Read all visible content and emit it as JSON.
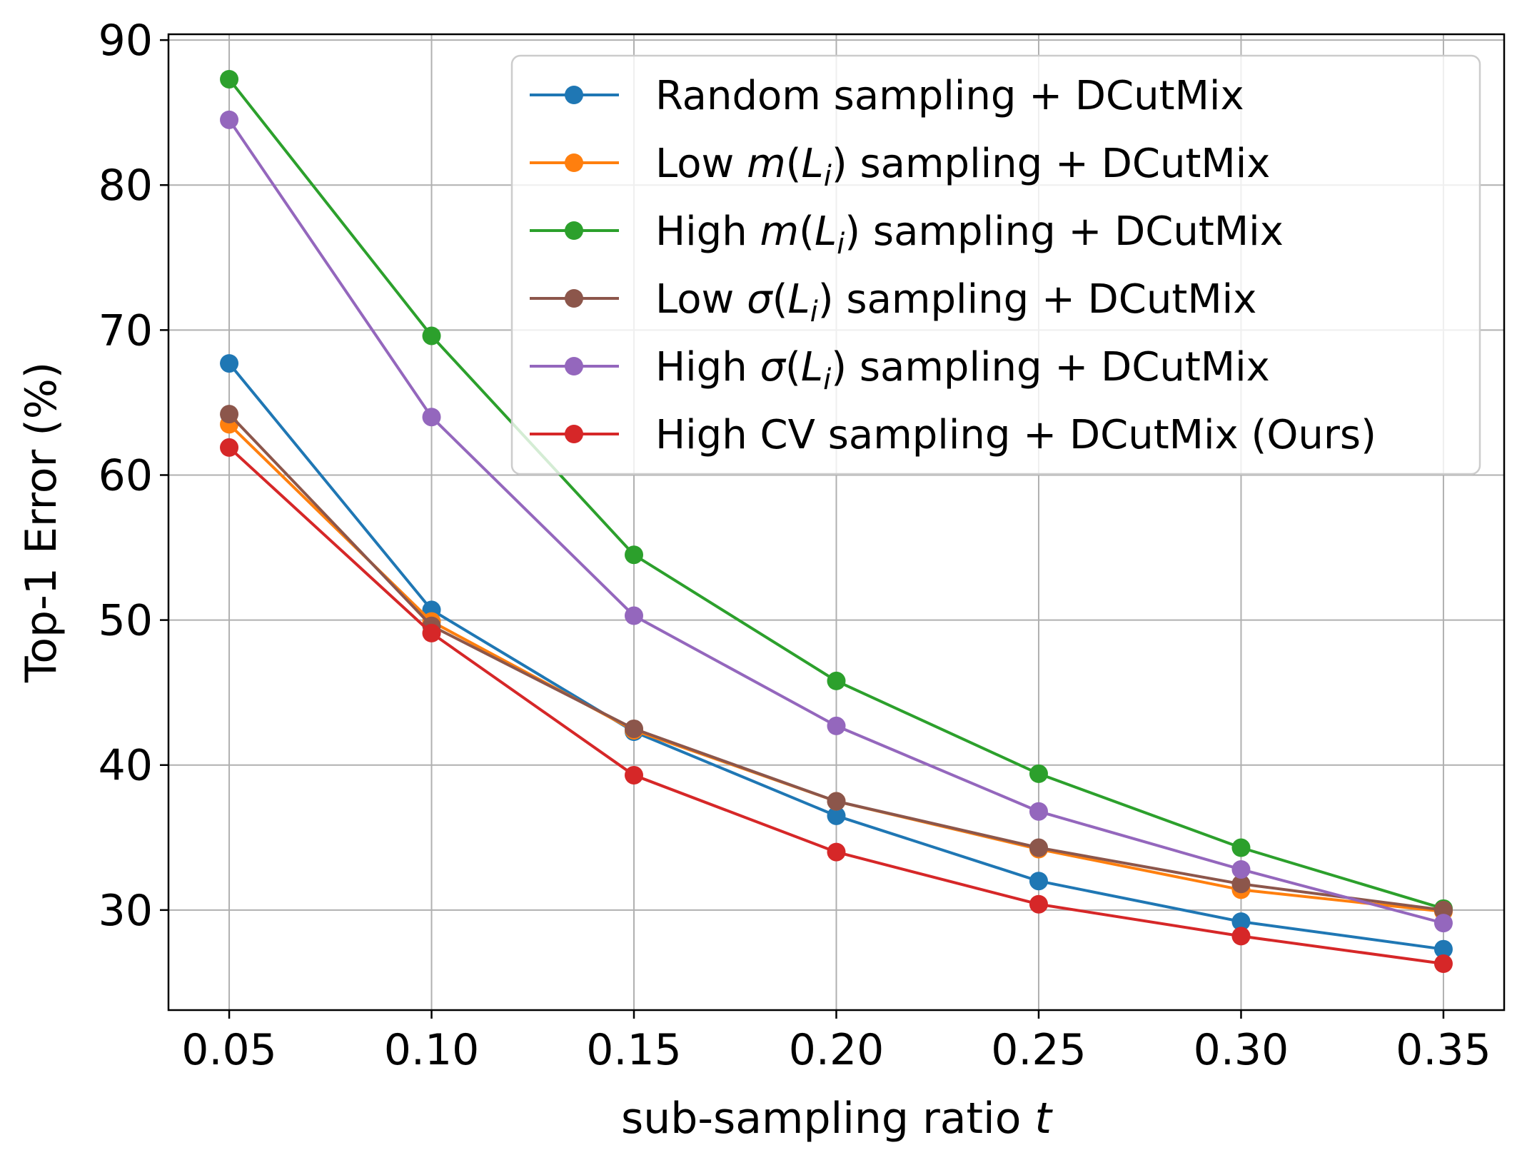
{
  "chart_data": {
    "type": "line",
    "xlabel": "sub-sampling ratio",
    "xlabel_var": "t",
    "ylabel": "Top-1 Error (%)",
    "x": [
      0.05,
      0.1,
      0.15,
      0.2,
      0.25,
      0.3,
      0.35
    ],
    "x_tick_labels": [
      "0.05",
      "0.10",
      "0.15",
      "0.20",
      "0.25",
      "0.30",
      "0.35"
    ],
    "xlim": [
      0.035,
      0.365
    ],
    "ylim": [
      23.1,
      90.4
    ],
    "y_ticks": [
      30,
      40,
      50,
      60,
      70,
      80,
      90
    ],
    "y_tick_labels": [
      "30",
      "40",
      "50",
      "60",
      "70",
      "80",
      "90"
    ],
    "grid": true,
    "legend_position": "top-right",
    "series": [
      {
        "name": "Random sampling + DCutMix",
        "legend": [
          {
            "t": "Random sampling + DCutMix"
          }
        ],
        "color": "#1f77b4",
        "values": [
          67.7,
          50.7,
          42.3,
          36.5,
          32.0,
          29.2,
          27.3
        ]
      },
      {
        "name": "Low m(L_i) sampling + DCutMix",
        "legend": [
          {
            "t": "Low "
          },
          {
            "t": "m",
            "i": true
          },
          {
            "t": "("
          },
          {
            "t": "L",
            "i": true
          },
          {
            "t": "i",
            "i": true,
            "sub": true
          },
          {
            "t": ") sampling + DCutMix"
          }
        ],
        "color": "#ff7f0e",
        "values": [
          63.5,
          49.9,
          42.4,
          37.5,
          34.2,
          31.4,
          29.9
        ]
      },
      {
        "name": "High m(L_i) sampling + DCutMix",
        "legend": [
          {
            "t": "High "
          },
          {
            "t": "m",
            "i": true
          },
          {
            "t": "("
          },
          {
            "t": "L",
            "i": true
          },
          {
            "t": "i",
            "i": true,
            "sub": true
          },
          {
            "t": ") sampling + DCutMix"
          }
        ],
        "color": "#2ca02c",
        "values": [
          87.3,
          69.6,
          54.5,
          45.8,
          39.4,
          34.3,
          30.1
        ]
      },
      {
        "name": "Low σ(L_i) sampling + DCutMix",
        "legend": [
          {
            "t": "Low "
          },
          {
            "t": "σ",
            "i": true
          },
          {
            "t": "("
          },
          {
            "t": "L",
            "i": true
          },
          {
            "t": "i",
            "i": true,
            "sub": true
          },
          {
            "t": ") sampling + DCutMix"
          }
        ],
        "color": "#8c564b",
        "values": [
          64.2,
          49.6,
          42.5,
          37.5,
          34.3,
          31.8,
          30.0
        ]
      },
      {
        "name": "High σ(L_i) sampling + DCutMix",
        "legend": [
          {
            "t": "High "
          },
          {
            "t": "σ",
            "i": true
          },
          {
            "t": "("
          },
          {
            "t": "L",
            "i": true
          },
          {
            "t": "i",
            "i": true,
            "sub": true
          },
          {
            "t": ") sampling + DCutMix"
          }
        ],
        "color": "#9467bd",
        "values": [
          84.5,
          64.0,
          50.3,
          42.7,
          36.8,
          32.8,
          29.1
        ]
      },
      {
        "name": "High CV sampling + DCutMix (Ours)",
        "legend": [
          {
            "t": "High CV sampling + DCutMix (Ours)"
          }
        ],
        "color": "#d62728",
        "values": [
          61.9,
          49.1,
          39.3,
          34.0,
          30.4,
          28.2,
          26.3
        ]
      }
    ]
  }
}
